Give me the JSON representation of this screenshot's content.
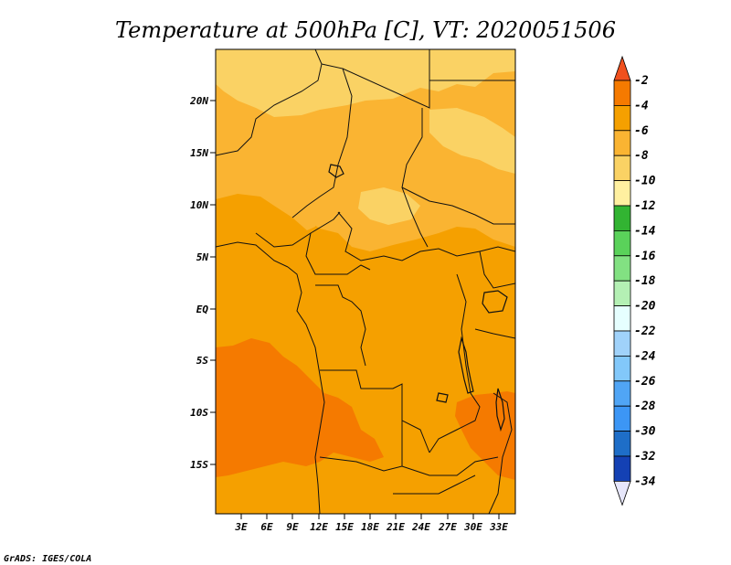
{
  "title": "Temperature at 500hPa [C], VT: 2020051506",
  "credit": "GrADS: IGES/COLA",
  "lat_labels": [
    "20N",
    "15N",
    "10N",
    "5N",
    "EQ",
    "5S",
    "10S",
    "15S"
  ],
  "lon_labels": [
    "3E",
    "6E",
    "9E",
    "12E",
    "15E",
    "18E",
    "21E",
    "24E",
    "27E",
    "30E",
    "33E"
  ],
  "colorbar": {
    "labels": [
      "-2",
      "-4",
      "-6",
      "-8",
      "-10",
      "-12",
      "-14",
      "-16",
      "-18",
      "-20",
      "-22",
      "-24",
      "-26",
      "-28",
      "-30",
      "-32",
      "-34"
    ],
    "colors": [
      "#f0501e",
      "#f57a00",
      "#f5a000",
      "#fab432",
      "#fad264",
      "#fff0a0",
      "#32b432",
      "#5ad25a",
      "#82e182",
      "#b4f0b4",
      "#e6ffff",
      "#a0d2fa",
      "#82c8fa",
      "#50a5f5",
      "#3c96f5",
      "#1e6ec8",
      "#1441b4",
      "#0f0f78"
    ],
    "top_color": "#f0501e",
    "bottom_color": "#e6e6fa"
  },
  "colors": {
    "warm_pale": "#fad264",
    "warm_light": "#fab432",
    "warm_mid": "#f5a000",
    "warm_hot": "#f57a00"
  }
}
